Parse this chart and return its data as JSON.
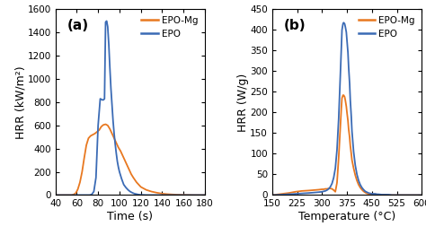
{
  "panel_a": {
    "label": "(a)",
    "xlabel": "Time (s)",
    "ylabel": "HRR (kW/m²)",
    "xlim": [
      40,
      180
    ],
    "ylim": [
      0,
      1600
    ],
    "xticks": [
      40,
      60,
      80,
      100,
      120,
      140,
      160,
      180
    ],
    "yticks": [
      0,
      200,
      400,
      600,
      800,
      1000,
      1200,
      1400,
      1600
    ],
    "epo_mg_color": "#E87820",
    "epo_color": "#3B6BB5",
    "epo_mg_data": {
      "x": [
        40,
        55,
        57,
        59,
        61,
        63,
        65,
        67,
        69,
        71,
        73,
        75,
        77,
        79,
        81,
        83,
        85,
        87,
        89,
        91,
        93,
        95,
        97,
        99,
        101,
        103,
        105,
        107,
        109,
        111,
        113,
        116,
        120,
        125,
        130,
        135,
        140,
        145,
        150,
        155,
        160,
        170,
        180
      ],
      "y": [
        0,
        0,
        5,
        15,
        50,
        110,
        200,
        320,
        430,
        490,
        510,
        520,
        530,
        545,
        560,
        590,
        605,
        610,
        600,
        570,
        530,
        490,
        450,
        410,
        380,
        340,
        300,
        260,
        220,
        180,
        150,
        110,
        70,
        45,
        30,
        20,
        12,
        8,
        5,
        3,
        2,
        0,
        0
      ]
    },
    "epo_data": {
      "x": [
        40,
        72,
        74,
        76,
        78,
        80,
        82,
        84,
        85,
        86,
        87,
        88,
        89,
        90,
        91,
        92,
        93,
        94,
        95,
        96,
        97,
        98,
        99,
        100,
        101,
        102,
        103,
        104,
        106,
        108,
        110,
        112,
        114,
        116,
        118,
        120,
        125,
        130,
        135,
        140,
        180
      ],
      "y": [
        0,
        0,
        5,
        30,
        150,
        600,
        830,
        820,
        820,
        830,
        1490,
        1500,
        1450,
        1300,
        1100,
        920,
        780,
        640,
        530,
        440,
        360,
        290,
        240,
        200,
        170,
        140,
        115,
        90,
        65,
        45,
        30,
        20,
        12,
        8,
        4,
        2,
        0,
        0,
        0,
        0,
        0
      ]
    }
  },
  "panel_b": {
    "label": "(b)",
    "xlabel": "Temperature (°C)",
    "ylabel": "HRR (W/g)",
    "xlim": [
      150,
      600
    ],
    "ylim": [
      0,
      450
    ],
    "xticks": [
      150,
      225,
      300,
      375,
      450,
      525,
      600
    ],
    "yticks": [
      0,
      50,
      100,
      150,
      200,
      250,
      300,
      350,
      400,
      450
    ],
    "epo_mg_color": "#E87820",
    "epo_color": "#3B6BB5",
    "epo_mg_data": {
      "x": [
        150,
        180,
        200,
        220,
        240,
        260,
        275,
        290,
        300,
        305,
        310,
        315,
        320,
        325,
        330,
        335,
        340,
        345,
        350,
        355,
        358,
        360,
        363,
        365,
        368,
        370,
        373,
        375,
        378,
        380,
        383,
        385,
        388,
        390,
        395,
        400,
        405,
        410,
        415,
        420,
        425,
        430,
        435,
        440,
        450,
        460,
        470,
        480,
        490,
        500,
        510,
        520,
        530,
        540,
        560,
        580,
        600
      ],
      "y": [
        0,
        3,
        5,
        8,
        10,
        11,
        12,
        13,
        14,
        14,
        15,
        15,
        16,
        16,
        15,
        12,
        8,
        30,
        90,
        165,
        210,
        235,
        242,
        242,
        238,
        230,
        215,
        200,
        180,
        160,
        140,
        120,
        100,
        85,
        65,
        48,
        35,
        25,
        18,
        13,
        9,
        6,
        4,
        3,
        2,
        2,
        1,
        1,
        1,
        0,
        0,
        0,
        0,
        0,
        0,
        0,
        0
      ]
    },
    "epo_data": {
      "x": [
        150,
        180,
        200,
        220,
        240,
        260,
        275,
        290,
        300,
        305,
        310,
        315,
        320,
        325,
        330,
        335,
        340,
        345,
        350,
        355,
        358,
        360,
        363,
        365,
        368,
        370,
        373,
        375,
        378,
        380,
        383,
        385,
        388,
        390,
        395,
        400,
        405,
        410,
        415,
        420,
        425,
        430,
        435,
        440,
        445,
        450,
        455,
        460,
        465,
        470,
        480,
        490,
        500,
        510,
        520,
        530,
        540,
        550,
        560,
        580,
        600
      ],
      "y": [
        0,
        1,
        2,
        3,
        4,
        5,
        6,
        7,
        8,
        9,
        10,
        12,
        15,
        20,
        28,
        42,
        65,
        110,
        185,
        290,
        355,
        400,
        415,
        418,
        415,
        408,
        395,
        375,
        345,
        310,
        270,
        230,
        190,
        155,
        105,
        72,
        50,
        35,
        25,
        18,
        13,
        9,
        7,
        5,
        4,
        3,
        3,
        3,
        2,
        2,
        1,
        1,
        1,
        0,
        0,
        0,
        0,
        0,
        0,
        0,
        0
      ]
    }
  },
  "legend": {
    "epo_mg_label": "EPO-Mg",
    "epo_label": "EPO"
  },
  "background_color": "#ffffff",
  "tick_fontsize": 7.5,
  "label_fontsize": 9,
  "panel_label_fontsize": 11
}
